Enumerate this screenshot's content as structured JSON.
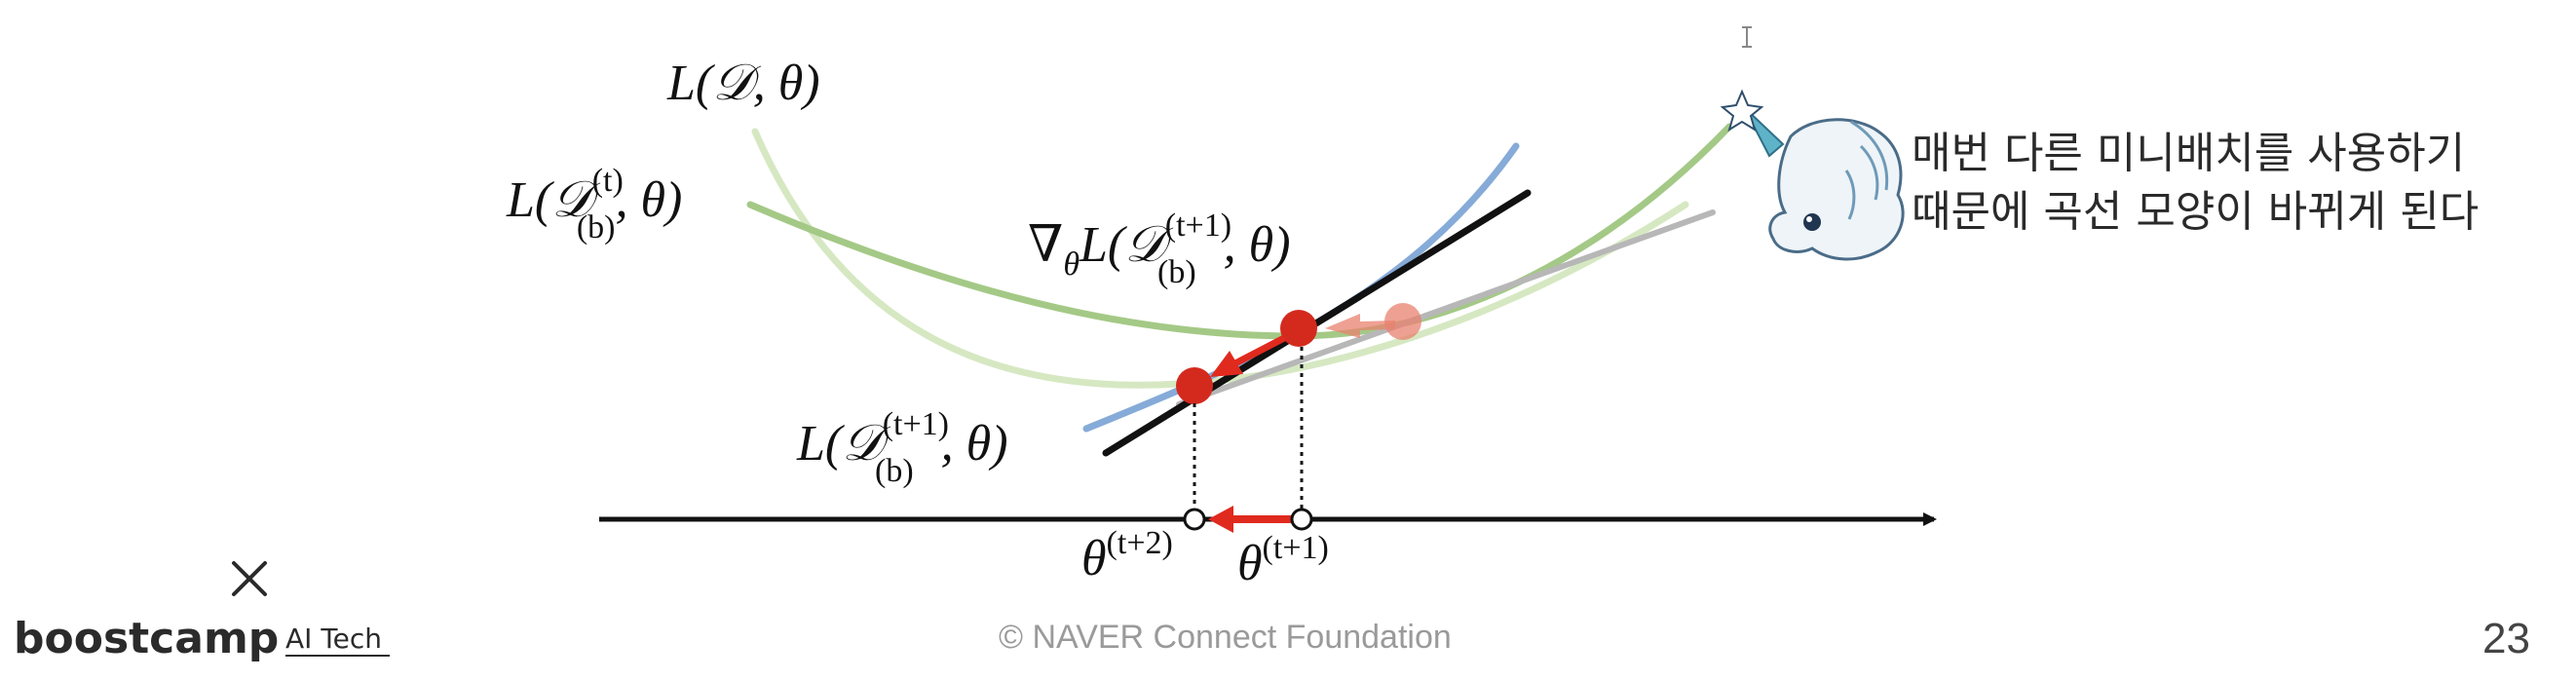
{
  "labels": {
    "loss_full": "L(𝒟, θ)",
    "loss_batch_t": {
      "prefix": "L(𝒟",
      "sup": "(t)",
      "sub": "(b)",
      "suffix": ", θ)"
    },
    "gradient": {
      "prefix": "∇",
      "nabla_sub": "θ",
      "mid": "L(𝒟",
      "sup": "(t+1)",
      "sub": "(b)",
      "suffix": ", θ)"
    },
    "loss_batch_t1": {
      "prefix": "L(𝒟",
      "sup": "(t+1)",
      "sub": "(b)",
      "suffix": ", θ)"
    },
    "theta_t2": {
      "base": "θ",
      "sup": "(t+2)"
    },
    "theta_t1": {
      "base": "θ",
      "sup": "(t+1)"
    }
  },
  "note": {
    "line1": "매번 다른 미니배치를 사용하기",
    "line2": "때문에 곡선 모양이 바뀌게 된다"
  },
  "footer": {
    "copyright": "©  NAVER Connect Foundation",
    "brand": "boostcamp",
    "brand_sub": "AI Tech",
    "page_number": "23"
  },
  "colors": {
    "curve_full": "#cfe3b8",
    "curve_batch": "#9cc47a",
    "curve_blue": "#7ea6d6",
    "tangent": "#111111",
    "gray_line": "#b5b5b5",
    "point_red": "#d42a1e",
    "arrow_red": "#e02a1e",
    "faded_red": "#e8826f"
  }
}
